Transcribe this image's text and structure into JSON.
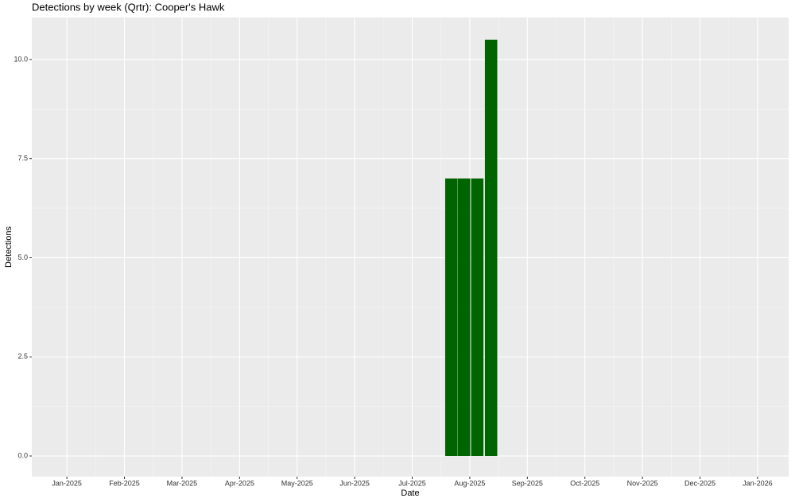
{
  "chart_data": {
    "type": "bar",
    "title": "Detections by week (Qrtr): Cooper's Hawk",
    "xlabel": "Date",
    "ylabel": "Detections",
    "x": [
      6.68,
      6.9,
      7.13,
      7.37
    ],
    "values": [
      7,
      7,
      7,
      10.5
    ],
    "color": "#006400",
    "xlim": [
      -0.61,
      12.54
    ],
    "xticks": [
      {
        "value": 0,
        "label": "Jan-2025"
      },
      {
        "value": 1,
        "label": "Feb-2025"
      },
      {
        "value": 2,
        "label": "Mar-2025"
      },
      {
        "value": 3,
        "label": "Apr-2025"
      },
      {
        "value": 4,
        "label": "May-2025"
      },
      {
        "value": 5,
        "label": "Jun-2025"
      },
      {
        "value": 6,
        "label": "Jul-2025"
      },
      {
        "value": 7,
        "label": "Aug-2025"
      },
      {
        "value": 8,
        "label": "Sep-2025"
      },
      {
        "value": 9,
        "label": "Oct-2025"
      },
      {
        "value": 10,
        "label": "Nov-2025"
      },
      {
        "value": 11,
        "label": "Dec-2025"
      },
      {
        "value": 12,
        "label": "Jan-2026"
      }
    ],
    "ylim": [
      -0.52,
      11.06
    ],
    "yticks": [
      {
        "value": 0,
        "label": "0.0"
      },
      {
        "value": 2.5,
        "label": "2.5"
      },
      {
        "value": 5,
        "label": "5.0"
      },
      {
        "value": 7.5,
        "label": "7.5"
      },
      {
        "value": 10,
        "label": "10.0"
      }
    ],
    "grid": true
  }
}
